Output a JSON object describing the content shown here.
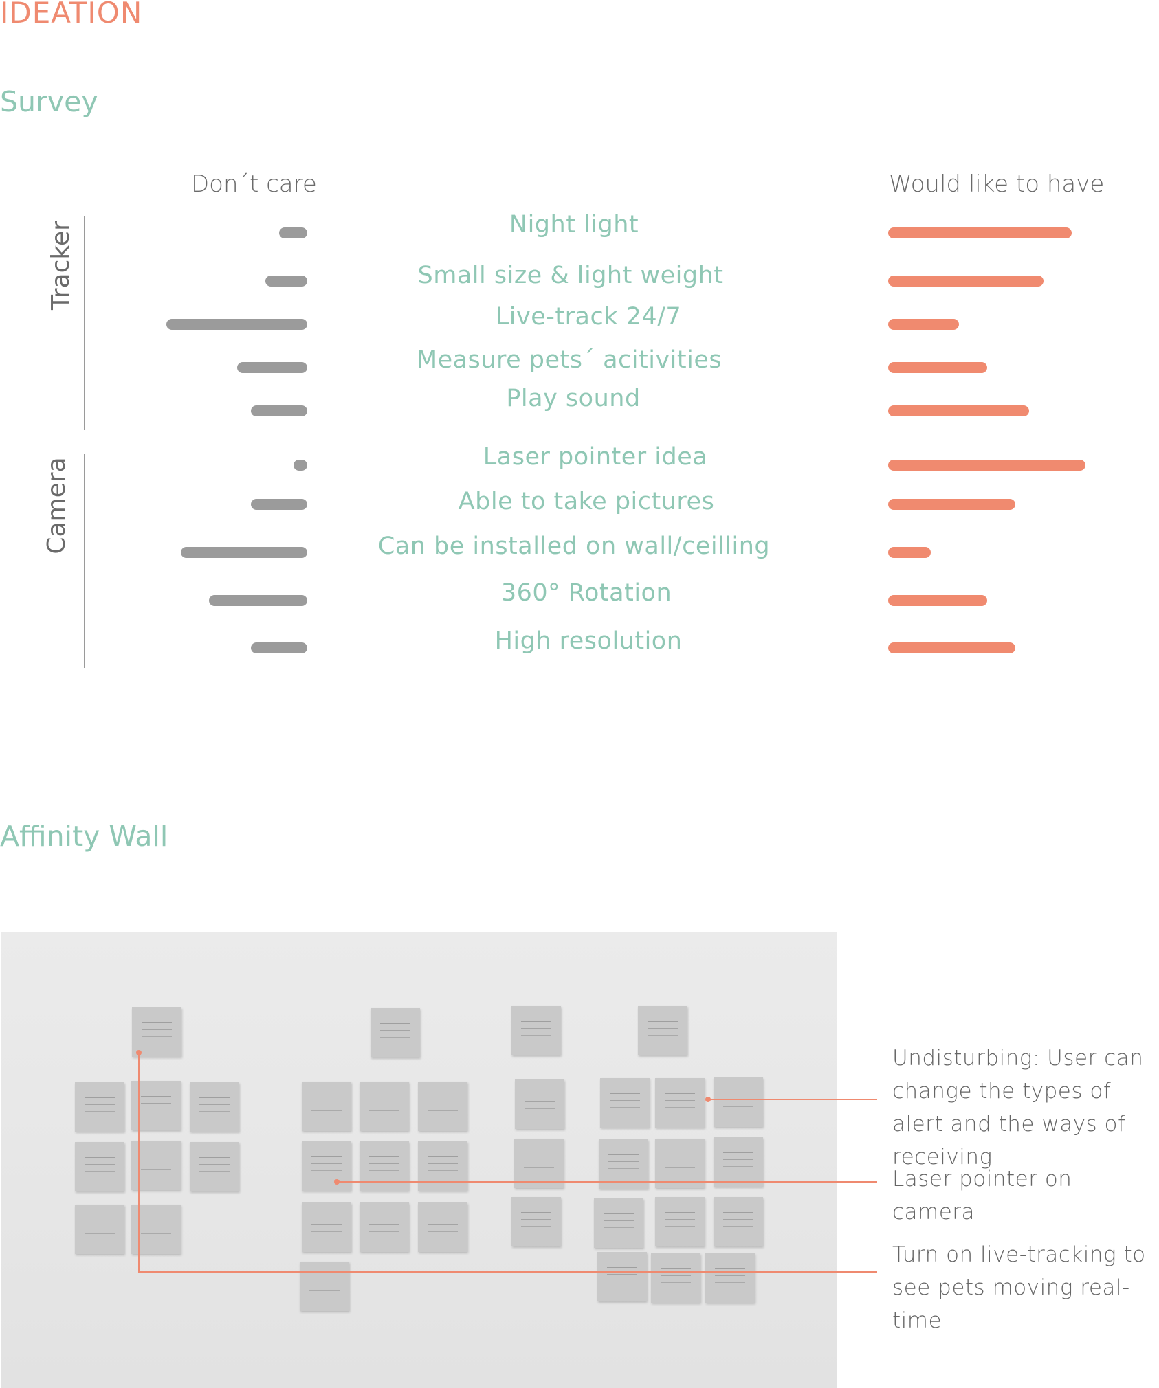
{
  "header": {
    "title": "IDEATION"
  },
  "survey": {
    "title": "Survey",
    "left_label": "Don´t care",
    "right_label": "Would like to have",
    "groups": [
      {
        "name": "Tracker"
      },
      {
        "name": "Camera"
      }
    ]
  },
  "chart_data": {
    "type": "bar",
    "title": "",
    "series": [
      {
        "name": "Don´t care",
        "color": "#9b9b9b"
      },
      {
        "name": "Would like to have",
        "color": "#f08a6f"
      }
    ],
    "categories": [
      "Night light",
      "Small size & light weight",
      "Live-track 24/7",
      "Measure pets´ acitivities",
      "Play sound",
      "Laser pointer idea",
      "Able to take pictures",
      "Can be installed on wall/ceilling",
      "360° Rotation",
      "High resolution"
    ],
    "group_of_category": [
      "Tracker",
      "Tracker",
      "Tracker",
      "Tracker",
      "Tracker",
      "Camera",
      "Camera",
      "Camera",
      "Camera",
      "Camera"
    ],
    "dont_care": [
      2,
      3,
      10,
      5,
      4,
      1,
      4,
      9,
      7,
      4
    ],
    "would_like": [
      13,
      11,
      5,
      7,
      10,
      14,
      9,
      3,
      7,
      9
    ],
    "grid": false,
    "legend": "top"
  },
  "affinity": {
    "title": "Affinity Wall",
    "callouts": [
      {
        "text": "Undisturbing: User can change the types of alert and the ways of receiving"
      },
      {
        "text": "Laser pointer on camera"
      },
      {
        "text": "Turn on live-tracking to see pets moving real-time"
      }
    ]
  }
}
